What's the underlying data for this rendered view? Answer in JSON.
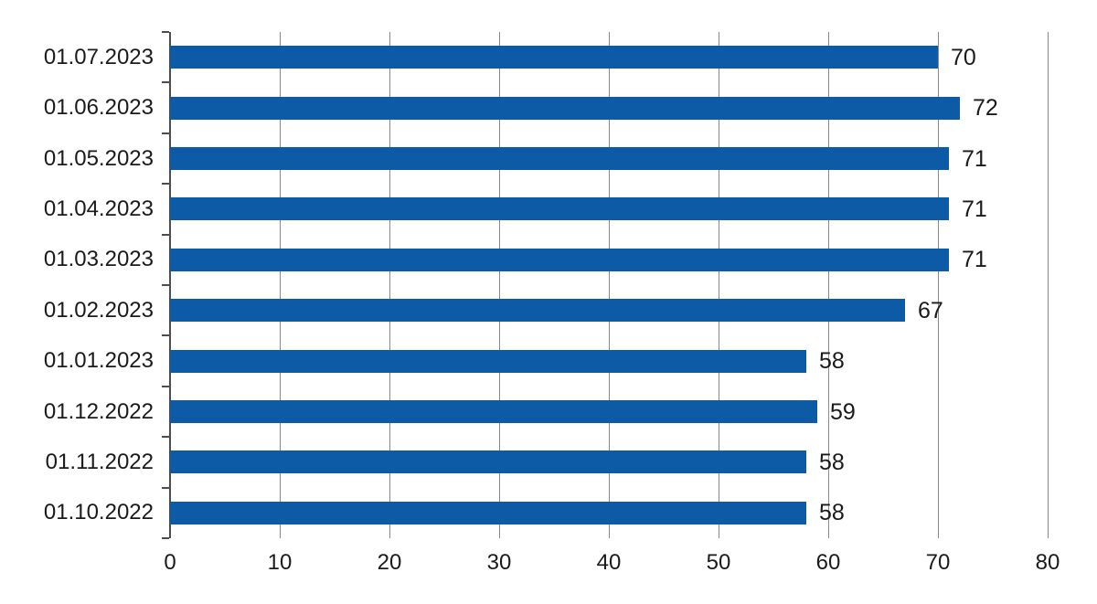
{
  "chart_data": {
    "type": "bar",
    "orientation": "horizontal",
    "title": "",
    "xlabel": "",
    "ylabel": "",
    "categories": [
      "01.07.2023",
      "01.06.2023",
      "01.05.2023",
      "01.04.2023",
      "01.03.2023",
      "01.02.2023",
      "01.01.2023",
      "01.12.2022",
      "01.11.2022",
      "01.10.2022"
    ],
    "values": [
      70,
      72,
      71,
      71,
      71,
      67,
      58,
      59,
      58,
      58
    ],
    "value_labels": [
      "70",
      "72",
      "71",
      "71",
      "71",
      "67",
      "58",
      "59",
      "58",
      "58"
    ],
    "xlim": [
      0,
      80
    ],
    "x_ticks": [
      0,
      10,
      20,
      30,
      40,
      50,
      60,
      70,
      80
    ],
    "x_tick_labels": [
      "0",
      "10",
      "20",
      "30",
      "40",
      "50",
      "60",
      "70",
      "80"
    ],
    "grid": "vertical",
    "legend": "none",
    "value_labels_shown": true,
    "colors": {
      "bar": "#0d5aa7",
      "gridline": "#8c8c8c",
      "axis": "#4d4d4d",
      "text": "#1a1a1a",
      "background": "#ffffff"
    }
  }
}
